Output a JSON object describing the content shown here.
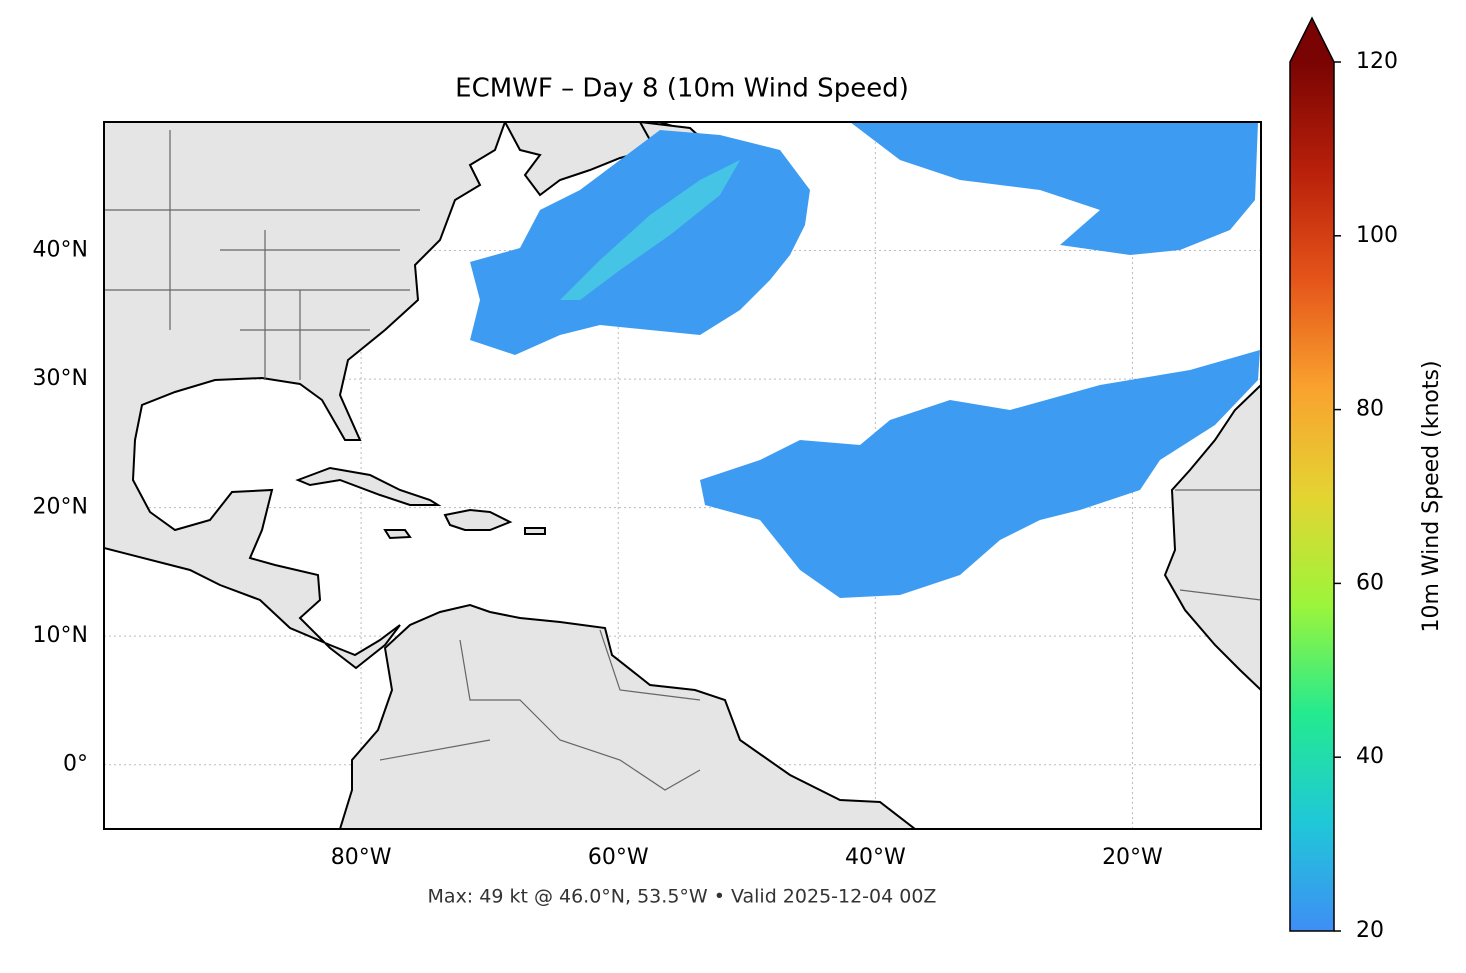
{
  "map": {
    "title": "ECMWF – Day 8 (10m Wind Speed)",
    "footer": "Max: 49 kt @ 46.0°N, 53.5°W • Valid 2025-12-04 00Z",
    "xlim": [
      -100,
      -10
    ],
    "ylim": [
      -5,
      50
    ],
    "xticks": [
      {
        "value": -80,
        "label": "80°W"
      },
      {
        "value": -60,
        "label": "60°W"
      },
      {
        "value": -40,
        "label": "40°W"
      },
      {
        "value": -20,
        "label": "20°W"
      }
    ],
    "yticks": [
      {
        "value": 0,
        "label": "0°"
      },
      {
        "value": 10,
        "label": "10°N"
      },
      {
        "value": 20,
        "label": "20°N"
      },
      {
        "value": 30,
        "label": "30°N"
      },
      {
        "value": 40,
        "label": "40°N"
      }
    ],
    "grid": true,
    "colorbar": {
      "label": "10m Wind Speed (knots)",
      "lim": [
        20,
        120
      ],
      "ticks": [
        20,
        40,
        60,
        80,
        100,
        120
      ],
      "colors": [
        "#3f8ef5",
        "#1fc8d8",
        "#24ea8f",
        "#9cf53a",
        "#e4d432",
        "#f9a22e",
        "#e5541a",
        "#b8200a",
        "#7a0403"
      ]
    }
  }
}
